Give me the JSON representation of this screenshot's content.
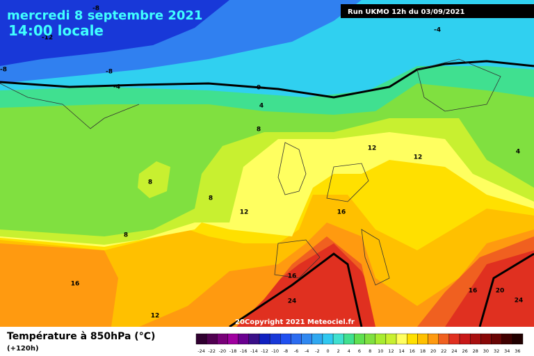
{
  "header": {
    "date": "mercredi 8 septembre 2021",
    "time": "14:00 locale",
    "run": "Run UKMO 12h du 03/09/2021"
  },
  "map": {
    "contour_labels": [
      "-8",
      "-12",
      "-8",
      "-8",
      "-4",
      "0",
      "-4",
      "4",
      "4",
      "8",
      "8",
      "8",
      "8",
      "12",
      "12",
      "12",
      "16",
      "16",
      "16",
      "16",
      "20",
      "24",
      "24",
      "12"
    ],
    "copyright": "20Copyright 2021 Meteociel.fr"
  },
  "footer": {
    "title": "Température à 850hPa (°C)",
    "lead": "(+120h)",
    "scale": {
      "values": [
        -24,
        -22,
        -20,
        -18,
        -16,
        -14,
        -12,
        -10,
        -8,
        -6,
        -4,
        -2,
        0,
        2,
        4,
        6,
        8,
        10,
        12,
        14,
        16,
        18,
        20,
        22,
        24,
        26,
        28,
        30,
        32,
        34,
        36
      ],
      "colors": [
        "#300030",
        "#500050",
        "#780078",
        "#a000a0",
        "#6a0090",
        "#3a1088",
        "#1020c0",
        "#1838d8",
        "#2050f0",
        "#2c6cf0",
        "#3088f0",
        "#30a8f0",
        "#30c8f0",
        "#40e0d0",
        "#40e090",
        "#60e050",
        "#80e040",
        "#a8ec30",
        "#c8f030",
        "#ffff60",
        "#ffe000",
        "#ffc000",
        "#ff9a10",
        "#f06020",
        "#e03020",
        "#c81818",
        "#a81010",
        "#880808",
        "#680404",
        "#400000",
        "#200000"
      ]
    }
  }
}
